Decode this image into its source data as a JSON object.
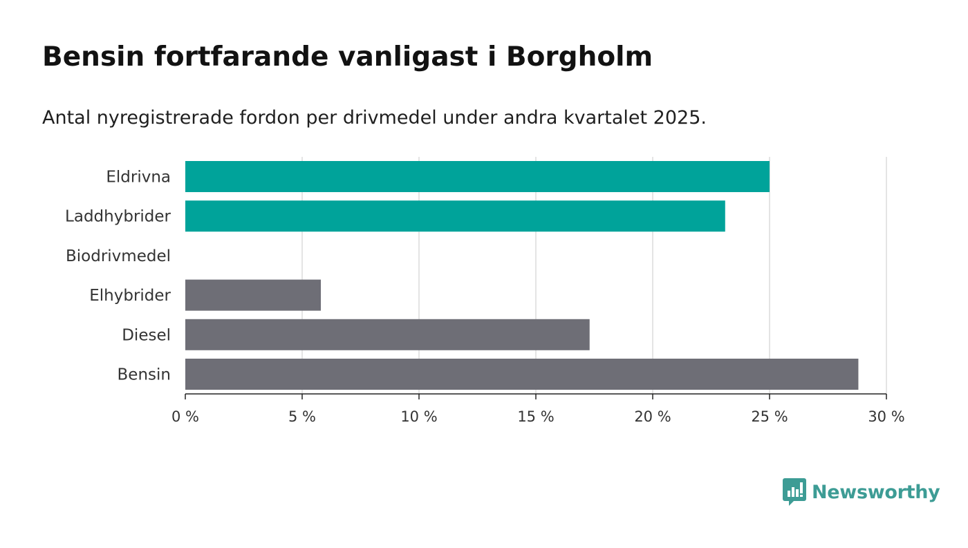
{
  "title": "Bensin fortfarande vanligast i Borgholm",
  "subtitle": "Antal nyregistrerade fordon per drivmedel under andra kvartalet 2025.",
  "brand": {
    "name": "Newsworthy",
    "icon": "newsworthy-logo-icon",
    "color": "#3d9c95"
  },
  "chart_data": {
    "type": "bar",
    "orientation": "horizontal",
    "title": "Bensin fortfarande vanligast i Borgholm",
    "subtitle": "Antal nyregistrerade fordon per drivmedel under andra kvartalet 2025.",
    "xlabel": "",
    "ylabel": "",
    "xlim": [
      0,
      30
    ],
    "xticks": [
      0,
      5,
      10,
      15,
      20,
      25,
      30
    ],
    "tick_suffix": " %",
    "grid": "vertical",
    "categories": [
      "Eldrivna",
      "Laddhybrider",
      "Biodrivmedel",
      "Elhybrider",
      "Diesel",
      "Bensin"
    ],
    "values": [
      25.0,
      23.1,
      0,
      5.8,
      17.3,
      28.8
    ],
    "colors": [
      "#00a39a",
      "#00a39a",
      "#00a39a",
      "#6e6e76",
      "#6e6e76",
      "#6e6e76"
    ]
  }
}
